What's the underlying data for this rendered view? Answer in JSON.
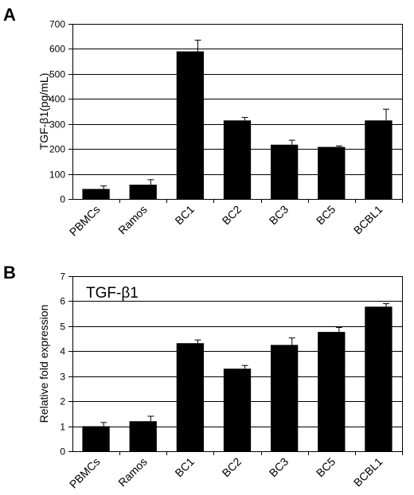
{
  "chart_data": [
    {
      "panel": "A",
      "type": "bar",
      "title": "",
      "ylabel": "TGF-β1(pg/mL)",
      "xlabel": "",
      "categories": [
        "PBMCs",
        "Ramos",
        "BC1",
        "BC2",
        "BC3",
        "BC5",
        "BCBL1"
      ],
      "values": [
        40,
        57,
        590,
        314,
        217,
        208,
        314
      ],
      "errors": [
        12,
        20,
        45,
        12,
        18,
        4,
        45
      ],
      "ylim": [
        0,
        700
      ],
      "yticks": [
        0,
        100,
        200,
        300,
        400,
        500,
        600,
        700
      ],
      "grid": true,
      "bar_color": "#000000"
    },
    {
      "panel": "B",
      "type": "bar",
      "title": "TGF-β1",
      "ylabel": "Relative fold expression",
      "xlabel": "",
      "categories": [
        "PBMCs",
        "Ramos",
        "BC1",
        "BC2",
        "BC3",
        "BC5",
        "BCBL1"
      ],
      "values": [
        1.0,
        1.2,
        4.32,
        3.3,
        4.25,
        4.77,
        5.78
      ],
      "errors": [
        0.15,
        0.2,
        0.13,
        0.13,
        0.28,
        0.18,
        0.12
      ],
      "ylim": [
        0,
        7
      ],
      "yticks": [
        0,
        1,
        2,
        3,
        4,
        5,
        6,
        7
      ],
      "grid": true,
      "bar_color": "#000000"
    }
  ]
}
